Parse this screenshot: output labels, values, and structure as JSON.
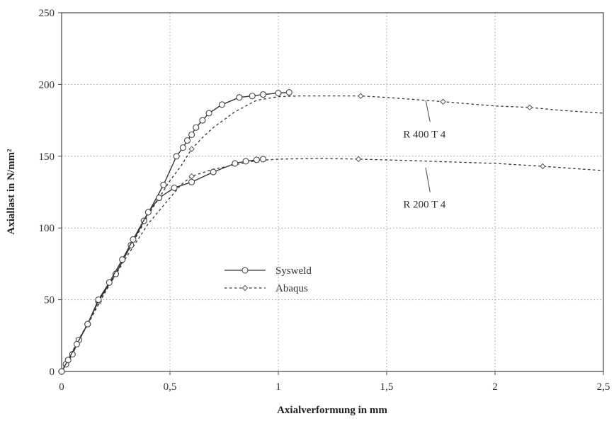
{
  "chart_data": {
    "type": "line",
    "xlabel": "Axialverformung in mm",
    "ylabel": "Axiallast in N/mm²",
    "xlim": [
      0,
      2.5
    ],
    "ylim": [
      0,
      250
    ],
    "x_ticks": [
      0,
      0.5,
      1,
      1.5,
      2,
      2.5
    ],
    "x_tick_labels": [
      "0",
      "0,5",
      "1",
      "1,5",
      "2",
      "2,5"
    ],
    "y_ticks": [
      0,
      50,
      100,
      150,
      200,
      250
    ],
    "y_tick_labels": [
      "0",
      "50",
      "100",
      "150",
      "200",
      "250"
    ],
    "grid": true,
    "legend": [
      {
        "label": "Sysweld",
        "style": "solid",
        "marker": "circle"
      },
      {
        "label": "Abaqus",
        "style": "dashed",
        "marker": "diamond"
      }
    ],
    "annotations": [
      {
        "text": "R 400 T 4",
        "x": 1.72,
        "y": 168,
        "arrow_to": [
          1.68,
          189
        ]
      },
      {
        "text": "R 200 T 4",
        "x": 1.72,
        "y": 119,
        "arrow_to": [
          1.68,
          142
        ]
      }
    ],
    "series": [
      {
        "group": "R 400 T 4",
        "legend_key": "Sysweld",
        "style": "solid",
        "marker": "circle",
        "points": [
          [
            0,
            0
          ],
          [
            0.02,
            5
          ],
          [
            0.05,
            12
          ],
          [
            0.08,
            22
          ],
          [
            0.12,
            33
          ],
          [
            0.17,
            49
          ],
          [
            0.25,
            68
          ],
          [
            0.32,
            88
          ],
          [
            0.38,
            105
          ],
          [
            0.47,
            130
          ],
          [
            0.53,
            150
          ],
          [
            0.56,
            156
          ],
          [
            0.58,
            161
          ],
          [
            0.6,
            165
          ],
          [
            0.62,
            170
          ],
          [
            0.65,
            175
          ],
          [
            0.68,
            180
          ],
          [
            0.74,
            186
          ],
          [
            0.82,
            191
          ],
          [
            0.88,
            192
          ],
          [
            0.93,
            193
          ],
          [
            1.0,
            194
          ],
          [
            1.05,
            194.5
          ]
        ]
      },
      {
        "group": "R 400 T 4",
        "legend_key": "Abaqus",
        "style": "dashed",
        "marker": "diamond",
        "points": [
          [
            0,
            0
          ],
          [
            0.05,
            13
          ],
          [
            0.1,
            27
          ],
          [
            0.2,
            55
          ],
          [
            0.3,
            82
          ],
          [
            0.4,
            109
          ],
          [
            0.5,
            133
          ],
          [
            0.55,
            143
          ],
          [
            0.6,
            155
          ],
          [
            0.65,
            163
          ],
          [
            0.7,
            170
          ],
          [
            0.8,
            181
          ],
          [
            0.9,
            189
          ],
          [
            1.0,
            191.5
          ],
          [
            1.1,
            192
          ],
          [
            1.3,
            192
          ],
          [
            1.38,
            192
          ],
          [
            1.5,
            191
          ],
          [
            1.76,
            188
          ],
          [
            2.0,
            185
          ],
          [
            2.16,
            184
          ],
          [
            2.3,
            182
          ],
          [
            2.5,
            180
          ]
        ]
      },
      {
        "group": "R 200 T 4",
        "legend_key": "Sysweld",
        "style": "solid",
        "marker": "circle",
        "points": [
          [
            0,
            0
          ],
          [
            0.03,
            8
          ],
          [
            0.07,
            19
          ],
          [
            0.12,
            33
          ],
          [
            0.17,
            50
          ],
          [
            0.22,
            62
          ],
          [
            0.28,
            78
          ],
          [
            0.33,
            92
          ],
          [
            0.4,
            111
          ],
          [
            0.45,
            121
          ],
          [
            0.52,
            128
          ],
          [
            0.6,
            132
          ],
          [
            0.7,
            139
          ],
          [
            0.8,
            145
          ],
          [
            0.85,
            146.5
          ],
          [
            0.9,
            147.5
          ],
          [
            0.93,
            148
          ]
        ]
      },
      {
        "group": "R 200 T 4",
        "legend_key": "Abaqus",
        "style": "dashed",
        "marker": "diamond",
        "points": [
          [
            0,
            0
          ],
          [
            0.1,
            28
          ],
          [
            0.2,
            55
          ],
          [
            0.3,
            80
          ],
          [
            0.4,
            103
          ],
          [
            0.5,
            121
          ],
          [
            0.55,
            130
          ],
          [
            0.6,
            136
          ],
          [
            0.7,
            141
          ],
          [
            0.8,
            144
          ],
          [
            0.9,
            147
          ],
          [
            1.0,
            148
          ],
          [
            1.2,
            148.5
          ],
          [
            1.37,
            148
          ],
          [
            1.6,
            147
          ],
          [
            1.8,
            146
          ],
          [
            2.0,
            145
          ],
          [
            2.22,
            143
          ],
          [
            2.5,
            140
          ]
        ]
      }
    ]
  }
}
